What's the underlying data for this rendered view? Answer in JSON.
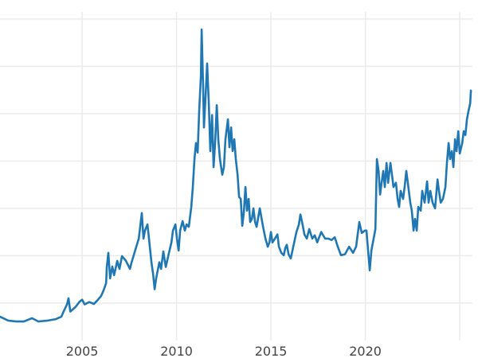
{
  "chart_data": {
    "type": "line",
    "title": "",
    "xlabel": "",
    "ylabel": "",
    "xlim": [
      2000.65,
      2025.67
    ],
    "ylim": [
      5.1,
      71.5
    ],
    "x_ticks": [
      2005,
      2010,
      2015,
      2020,
      2025
    ],
    "x_tick_labels": [
      "2005",
      "2010",
      "2015",
      "2020",
      ""
    ],
    "y_gridlines": [
      10,
      20,
      30,
      40,
      50,
      60,
      70
    ],
    "y_tick_labels_visible": false,
    "grid": true,
    "legend": "none",
    "colors": {
      "line": "#1f77b4",
      "grid": "#ebebeb",
      "text": "#444444"
    },
    "series": [
      {
        "points": [
          [
            2000.65,
            7.1
          ],
          [
            2001.08,
            6.3
          ],
          [
            2001.5,
            6.1
          ],
          [
            2001.92,
            6.1
          ],
          [
            2002.34,
            6.8
          ],
          [
            2002.68,
            6.1
          ],
          [
            2003.19,
            6.3
          ],
          [
            2003.61,
            6.6
          ],
          [
            2003.9,
            7.1
          ],
          [
            2004.03,
            8.3
          ],
          [
            2004.2,
            9.7
          ],
          [
            2004.28,
            11.0
          ],
          [
            2004.37,
            8.2
          ],
          [
            2004.66,
            9.2
          ],
          [
            2004.87,
            10.3
          ],
          [
            2005.0,
            10.7
          ],
          [
            2005.13,
            9.7
          ],
          [
            2005.38,
            10.2
          ],
          [
            2005.63,
            9.8
          ],
          [
            2005.72,
            10.2
          ],
          [
            2005.84,
            10.7
          ],
          [
            2006.01,
            11.5
          ],
          [
            2006.14,
            12.7
          ],
          [
            2006.27,
            14.2
          ],
          [
            2006.31,
            17.6
          ],
          [
            2006.39,
            20.6
          ],
          [
            2006.48,
            15.2
          ],
          [
            2006.6,
            17.7
          ],
          [
            2006.69,
            15.9
          ],
          [
            2006.86,
            18.9
          ],
          [
            2006.98,
            17.2
          ],
          [
            2007.11,
            19.9
          ],
          [
            2007.32,
            18.9
          ],
          [
            2007.53,
            17.2
          ],
          [
            2007.62,
            18.6
          ],
          [
            2007.83,
            21.4
          ],
          [
            2008.0,
            23.6
          ],
          [
            2008.16,
            29.0
          ],
          [
            2008.25,
            23.6
          ],
          [
            2008.33,
            25.3
          ],
          [
            2008.46,
            26.6
          ],
          [
            2008.54,
            23.6
          ],
          [
            2008.67,
            18.6
          ],
          [
            2008.76,
            16.1
          ],
          [
            2008.84,
            12.9
          ],
          [
            2008.92,
            15.2
          ],
          [
            2009.09,
            18.6
          ],
          [
            2009.18,
            17.2
          ],
          [
            2009.3,
            20.9
          ],
          [
            2009.43,
            17.6
          ],
          [
            2009.6,
            20.6
          ],
          [
            2009.73,
            22.8
          ],
          [
            2009.81,
            25.3
          ],
          [
            2009.94,
            26.6
          ],
          [
            2010.02,
            23.6
          ],
          [
            2010.11,
            21.1
          ],
          [
            2010.19,
            25.3
          ],
          [
            2010.32,
            27.3
          ],
          [
            2010.44,
            25.3
          ],
          [
            2010.53,
            26.6
          ],
          [
            2010.65,
            26.1
          ],
          [
            2010.78,
            30.3
          ],
          [
            2010.86,
            34.4
          ],
          [
            2010.95,
            40.4
          ],
          [
            2011.03,
            43.8
          ],
          [
            2011.12,
            41.8
          ],
          [
            2011.2,
            50.5
          ],
          [
            2011.29,
            58.1
          ],
          [
            2011.33,
            67.8
          ],
          [
            2011.41,
            55.5
          ],
          [
            2011.45,
            47.1
          ],
          [
            2011.54,
            53.9
          ],
          [
            2011.62,
            60.6
          ],
          [
            2011.71,
            52.2
          ],
          [
            2011.79,
            42.1
          ],
          [
            2011.88,
            49.7
          ],
          [
            2011.96,
            38.7
          ],
          [
            2012.04,
            43.8
          ],
          [
            2012.13,
            51.8
          ],
          [
            2012.21,
            44.6
          ],
          [
            2012.3,
            40.4
          ],
          [
            2012.42,
            37.1
          ],
          [
            2012.51,
            38.7
          ],
          [
            2012.59,
            44.6
          ],
          [
            2012.72,
            48.8
          ],
          [
            2012.8,
            42.9
          ],
          [
            2012.89,
            47.1
          ],
          [
            2012.97,
            42.1
          ],
          [
            2013.06,
            44.6
          ],
          [
            2013.14,
            40.4
          ],
          [
            2013.23,
            37.1
          ],
          [
            2013.31,
            32.4
          ],
          [
            2013.4,
            32.0
          ],
          [
            2013.48,
            26.3
          ],
          [
            2013.56,
            29.0
          ],
          [
            2013.65,
            34.5
          ],
          [
            2013.73,
            29.5
          ],
          [
            2013.82,
            32.0
          ],
          [
            2013.9,
            27.1
          ],
          [
            2013.99,
            27.8
          ],
          [
            2014.07,
            30.0
          ],
          [
            2014.16,
            27.1
          ],
          [
            2014.24,
            26.1
          ],
          [
            2014.41,
            30.0
          ],
          [
            2014.58,
            26.1
          ],
          [
            2014.71,
            23.6
          ],
          [
            2014.83,
            21.9
          ],
          [
            2014.92,
            22.8
          ],
          [
            2015.0,
            25.0
          ],
          [
            2015.08,
            22.8
          ],
          [
            2015.21,
            23.6
          ],
          [
            2015.34,
            24.5
          ],
          [
            2015.42,
            21.9
          ],
          [
            2015.55,
            20.6
          ],
          [
            2015.68,
            20.1
          ],
          [
            2015.76,
            21.6
          ],
          [
            2015.84,
            22.3
          ],
          [
            2015.93,
            20.3
          ],
          [
            2016.05,
            19.4
          ],
          [
            2016.18,
            21.9
          ],
          [
            2016.35,
            25.0
          ],
          [
            2016.48,
            26.6
          ],
          [
            2016.56,
            28.7
          ],
          [
            2016.65,
            27.1
          ],
          [
            2016.77,
            24.5
          ],
          [
            2016.9,
            23.6
          ],
          [
            2017.03,
            25.6
          ],
          [
            2017.19,
            23.6
          ],
          [
            2017.32,
            24.3
          ],
          [
            2017.45,
            22.8
          ],
          [
            2017.66,
            25.0
          ],
          [
            2017.87,
            23.6
          ],
          [
            2018.04,
            23.6
          ],
          [
            2018.21,
            23.3
          ],
          [
            2018.38,
            23.9
          ],
          [
            2018.54,
            21.9
          ],
          [
            2018.71,
            20.1
          ],
          [
            2018.92,
            20.3
          ],
          [
            2019.14,
            21.9
          ],
          [
            2019.35,
            20.6
          ],
          [
            2019.51,
            21.9
          ],
          [
            2019.68,
            27.1
          ],
          [
            2019.81,
            24.8
          ],
          [
            2019.98,
            25.3
          ],
          [
            2020.06,
            25.3
          ],
          [
            2020.23,
            16.9
          ],
          [
            2020.32,
            21.1
          ],
          [
            2020.44,
            23.6
          ],
          [
            2020.53,
            25.6
          ],
          [
            2020.61,
            40.4
          ],
          [
            2020.7,
            37.9
          ],
          [
            2020.78,
            32.9
          ],
          [
            2020.86,
            35.4
          ],
          [
            2020.95,
            37.9
          ],
          [
            2021.03,
            34.5
          ],
          [
            2021.12,
            39.6
          ],
          [
            2021.2,
            35.4
          ],
          [
            2021.33,
            39.6
          ],
          [
            2021.41,
            37.1
          ],
          [
            2021.49,
            34.5
          ],
          [
            2021.62,
            35.4
          ],
          [
            2021.71,
            32.0
          ],
          [
            2021.79,
            30.3
          ],
          [
            2021.87,
            33.7
          ],
          [
            2022.0,
            32.0
          ],
          [
            2022.08,
            34.5
          ],
          [
            2022.17,
            37.9
          ],
          [
            2022.25,
            35.4
          ],
          [
            2022.38,
            31.2
          ],
          [
            2022.46,
            29.5
          ],
          [
            2022.55,
            25.3
          ],
          [
            2022.63,
            27.8
          ],
          [
            2022.72,
            25.3
          ],
          [
            2022.8,
            30.3
          ],
          [
            2022.93,
            29.5
          ],
          [
            2023.01,
            33.7
          ],
          [
            2023.14,
            31.2
          ],
          [
            2023.27,
            35.7
          ],
          [
            2023.35,
            31.2
          ],
          [
            2023.44,
            33.7
          ],
          [
            2023.56,
            31.2
          ],
          [
            2023.69,
            30.0
          ],
          [
            2023.82,
            36.1
          ],
          [
            2023.9,
            33.7
          ],
          [
            2023.99,
            31.2
          ],
          [
            2024.11,
            32.0
          ],
          [
            2024.24,
            34.5
          ],
          [
            2024.32,
            39.6
          ],
          [
            2024.41,
            43.8
          ],
          [
            2024.49,
            40.4
          ],
          [
            2024.58,
            42.1
          ],
          [
            2024.66,
            38.7
          ],
          [
            2024.75,
            44.6
          ],
          [
            2024.83,
            42.1
          ],
          [
            2024.92,
            46.3
          ],
          [
            2025.0,
            41.6
          ],
          [
            2025.13,
            43.8
          ],
          [
            2025.21,
            46.3
          ],
          [
            2025.3,
            45.5
          ],
          [
            2025.38,
            48.8
          ],
          [
            2025.46,
            50.5
          ],
          [
            2025.55,
            52.2
          ],
          [
            2025.59,
            54.9
          ]
        ]
      }
    ]
  }
}
